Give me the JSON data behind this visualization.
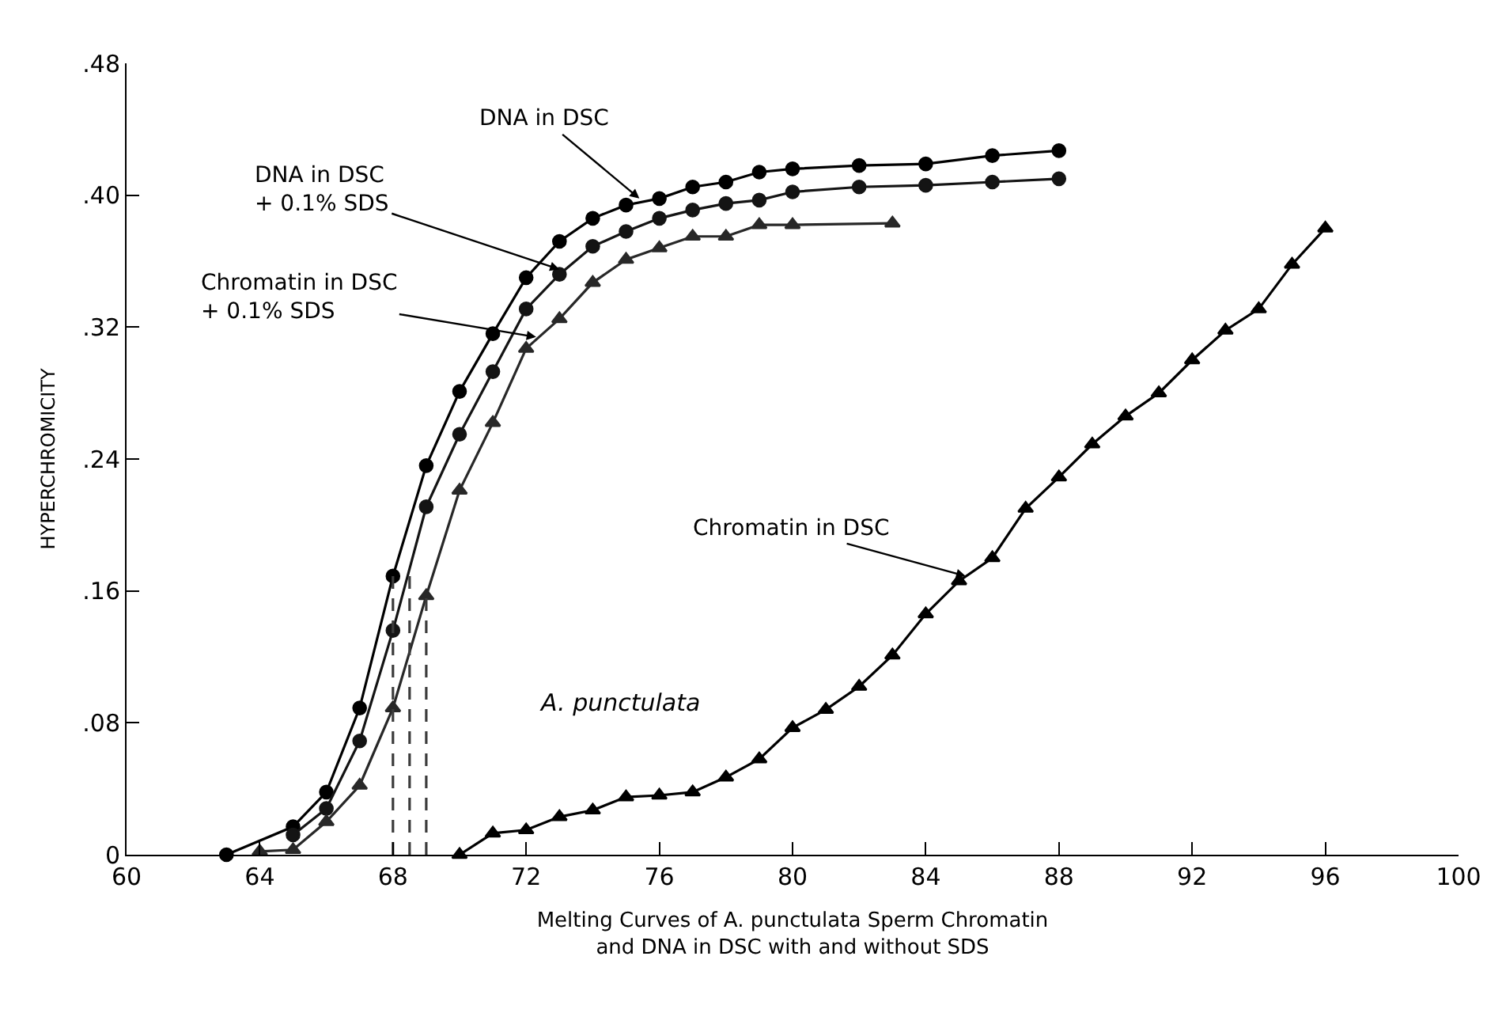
{
  "chart_data": {
    "type": "line",
    "xlabel": "Melting Curves of A. punctulata Sperm Chromatin\nand DNA in DSC with and without SDS",
    "ylabel": "HYPERCHROMICITY",
    "xlim": [
      60,
      100
    ],
    "xticks": [
      60,
      64,
      68,
      72,
      76,
      80,
      84,
      88,
      92,
      96,
      100
    ],
    "ylim": [
      0,
      0.48
    ],
    "yticks": [
      0,
      {
        "value": 0.08,
        "label": ".08"
      },
      {
        "value": 0.16,
        "label": ".16"
      },
      {
        "value": 0.24,
        "label": ".24"
      },
      {
        "value": 0.32,
        "label": ".32"
      },
      {
        "value": 0.4,
        "label": ".40"
      },
      {
        "value": 0.48,
        "label": ".48"
      }
    ],
    "series": [
      {
        "color": "#000000",
        "marker": "circle",
        "x": [
          63,
          65,
          66,
          67,
          68,
          69,
          70,
          71,
          72,
          73,
          74,
          75,
          76,
          77,
          78,
          79,
          80,
          82,
          84,
          86,
          88
        ],
        "values": [
          0,
          0.017,
          0.038,
          0.089,
          0.169,
          0.236,
          0.281,
          0.316,
          0.35,
          0.372,
          0.386,
          0.394,
          0.398,
          0.405,
          0.408,
          0.414,
          0.416,
          0.418,
          0.419,
          0.424,
          0.427
        ]
      },
      {
        "color": "#141414",
        "marker": "circle",
        "x": [
          65,
          66,
          67,
          68,
          69,
          70,
          71,
          72,
          73,
          74,
          75,
          76,
          77,
          78,
          79,
          80,
          82,
          84,
          86,
          88
        ],
        "values": [
          0.012,
          0.028,
          0.069,
          0.136,
          0.211,
          0.255,
          0.293,
          0.331,
          0.352,
          0.369,
          0.378,
          0.386,
          0.391,
          0.395,
          0.397,
          0.402,
          0.405,
          0.406,
          0.408,
          0.41
        ]
      },
      {
        "color": "#282828",
        "marker": "triangle",
        "x": [
          64,
          65,
          66,
          67,
          68,
          69,
          70,
          71,
          72,
          73,
          74,
          75,
          76,
          77,
          78,
          79,
          80,
          83
        ],
        "values": [
          0.002,
          0.003,
          0.02,
          0.042,
          0.089,
          0.157,
          0.221,
          0.262,
          0.307,
          0.325,
          0.347,
          0.361,
          0.368,
          0.375,
          0.375,
          0.382,
          0.382,
          0.383
        ]
      },
      {
        "color": "#000000",
        "marker": "triangle",
        "x": [
          70,
          71,
          72,
          73,
          74,
          75,
          76,
          77,
          78,
          79,
          80,
          81,
          82,
          83,
          84,
          85,
          86,
          87,
          88,
          89,
          90,
          91,
          92,
          93,
          94,
          95,
          96
        ],
        "values": [
          0,
          0.013,
          0.015,
          0.023,
          0.027,
          0.035,
          0.036,
          0.038,
          0.047,
          0.058,
          0.077,
          0.088,
          0.102,
          0.121,
          0.146,
          0.166,
          0.18,
          0.21,
          0.229,
          0.249,
          0.266,
          0.28,
          0.3,
          0.318,
          0.331,
          0.358,
          0.38
        ]
      },
      {
        "color": "#3c3c3c",
        "marker": "none",
        "line_style": "dashed",
        "x": [
          68,
          68
        ],
        "values": [
          0,
          0.169
        ]
      },
      {
        "color": "#3c3c3c",
        "marker": "none",
        "line_style": "dashed",
        "x": [
          68.5,
          68.5
        ],
        "values": [
          0,
          0.172
        ]
      },
      {
        "color": "#3c3c3c",
        "marker": "none",
        "line_style": "dashed",
        "x": [
          69,
          69
        ],
        "values": [
          0,
          0.157
        ]
      }
    ],
    "annotations": [
      {
        "text": "DNA in DSC",
        "x": 75.4,
        "y": 0.398
      },
      {
        "text": "DNA in DSC\n+ 0.1% SDS",
        "x": 73,
        "y": 0.355
      },
      {
        "text": "Chromatin in DSC\n+ 0.1% SDS",
        "x": 72.3,
        "y": 0.314
      },
      {
        "text": "Chromatin in DSC",
        "x": 85.2,
        "y": 0.169
      },
      "A. punctulata"
    ]
  }
}
